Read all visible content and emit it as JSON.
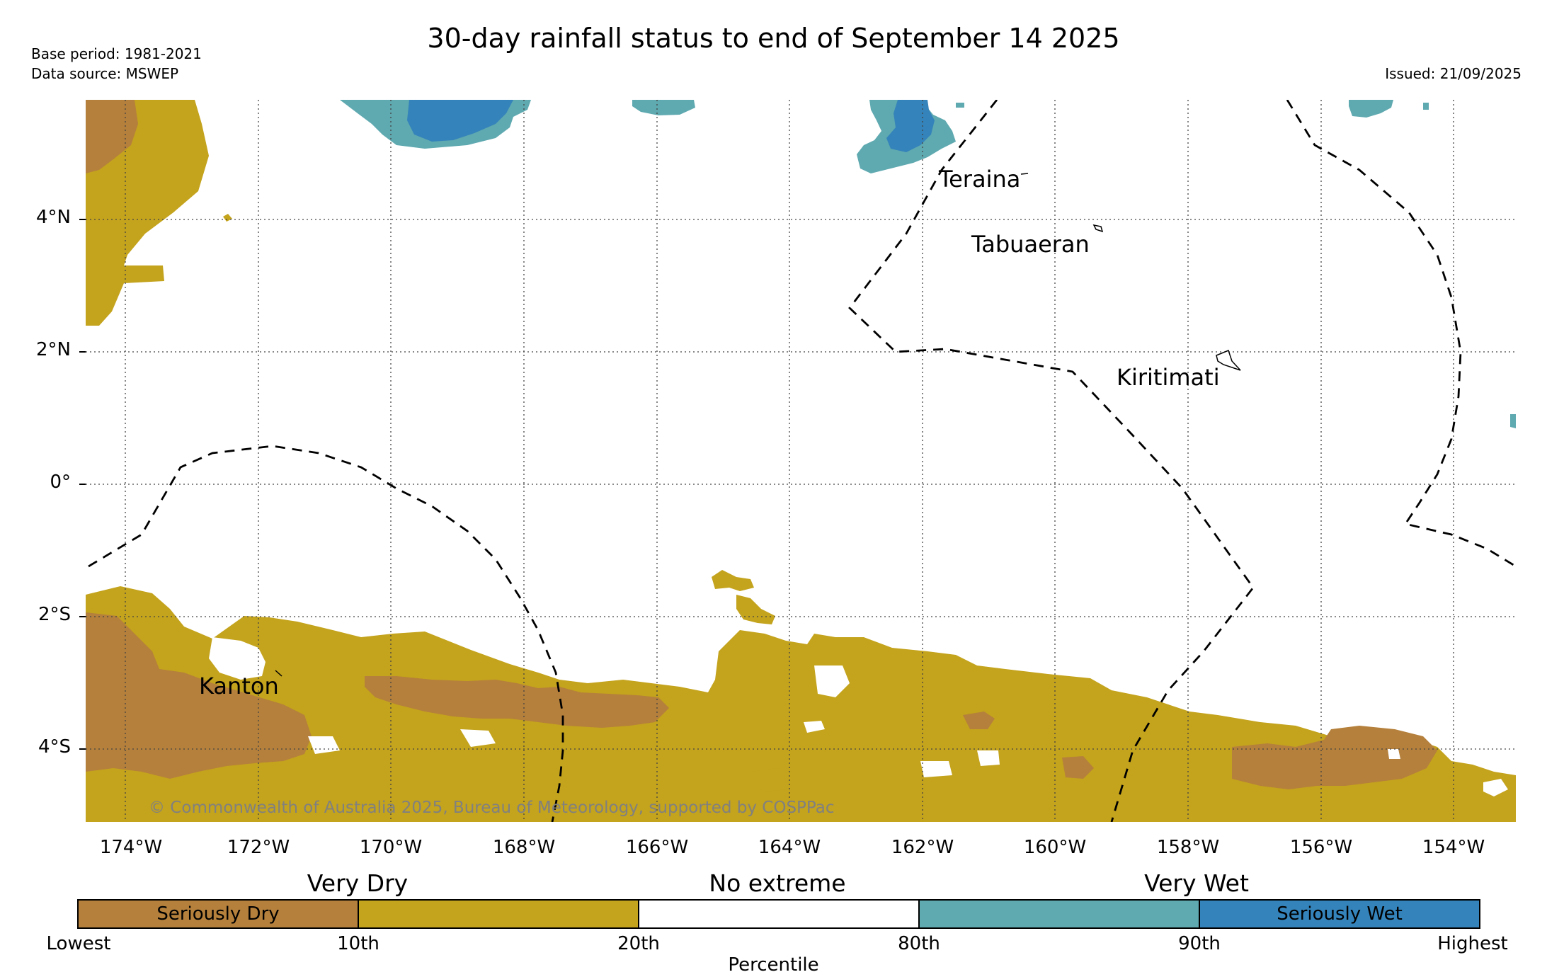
{
  "title": "30-day rainfall status to end of September 14 2025",
  "meta": {
    "base_period": "Base period: 1981-2021",
    "data_source": "Data source: MSWEP",
    "issued": "Issued: 21/09/2025"
  },
  "map": {
    "lat_labels": [
      "4°N",
      "2°N",
      "0°",
      "2°S",
      "4°S"
    ],
    "lon_labels": [
      "174°W",
      "172°W",
      "170°W",
      "168°W",
      "166°W",
      "164°W",
      "162°W",
      "160°W",
      "158°W",
      "156°W",
      "154°W"
    ],
    "places": {
      "teraina": "Teraina",
      "tabuaeran": "Tabuaeran",
      "kiritimati": "Kiritimati",
      "kanton": "Kanton"
    },
    "copyright": "© Commonwealth of Australia 2025, Bureau of Meteorology, supported by COSPPac"
  },
  "legend": {
    "headings": {
      "very_dry": "Very Dry",
      "no_extreme": "No extreme",
      "very_wet": "Very Wet"
    },
    "boxes": {
      "seriously_dry": {
        "label": "Seriously Dry",
        "color": "#b5803b"
      },
      "very_dry": {
        "label": "",
        "color": "#c4a31d"
      },
      "no_extreme": {
        "label": "",
        "color": "#ffffff"
      },
      "very_wet": {
        "label": "",
        "color": "#5fa9b0"
      },
      "seriously_wet": {
        "label": "Seriously Wet",
        "color": "#3483ba"
      }
    },
    "ticks": [
      "Lowest",
      "10th",
      "20th",
      "80th",
      "90th",
      "Highest"
    ],
    "axis_label": "Percentile"
  }
}
